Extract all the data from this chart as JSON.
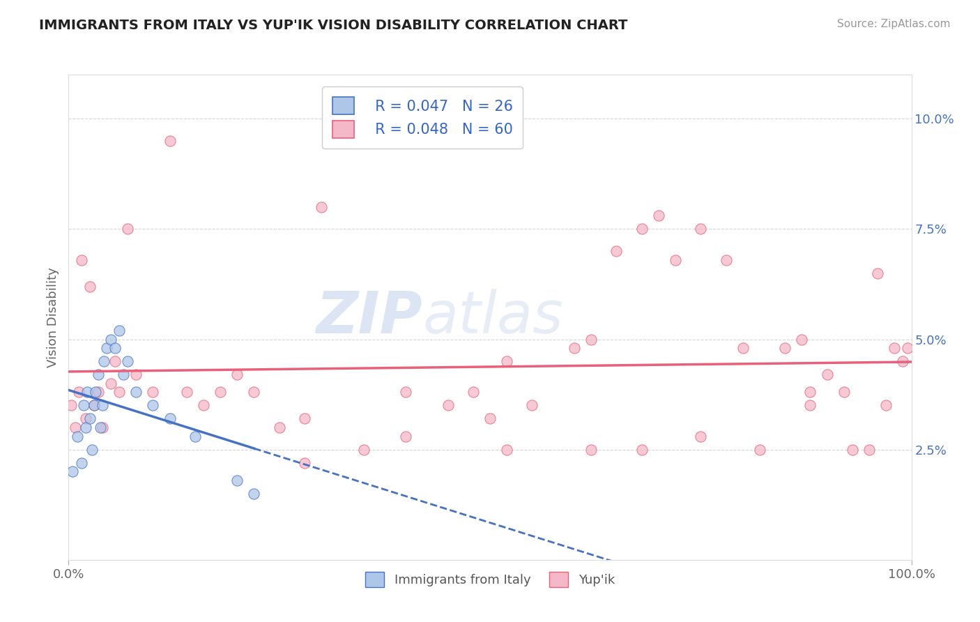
{
  "title": "IMMIGRANTS FROM ITALY VS YUP'IK VISION DISABILITY CORRELATION CHART",
  "source": "Source: ZipAtlas.com",
  "ylabel": "Vision Disability",
  "xlim": [
    0,
    100
  ],
  "ylim": [
    0,
    11
  ],
  "xticks": [
    0,
    100
  ],
  "xtick_labels": [
    "0.0%",
    "100.0%"
  ],
  "yticks": [
    2.5,
    5.0,
    7.5,
    10.0
  ],
  "ytick_labels": [
    "2.5%",
    "5.0%",
    "7.5%",
    "10.0%"
  ],
  "legend_italy_label": "Immigrants from Italy",
  "legend_yupik_label": "Yup'ik",
  "legend_italy_r": "R = 0.047",
  "legend_italy_n": "N = 26",
  "legend_yupik_r": "R = 0.048",
  "legend_yupik_n": "N = 60",
  "italy_color": "#AEC6E8",
  "yupik_color": "#F4B8C8",
  "italy_line_color": "#4472C4",
  "yupik_line_color": "#E8607A",
  "watermark_zip": "ZIP",
  "watermark_atlas": "atlas",
  "background_color": "#FFFFFF",
  "grid_color": "#CCCCCC",
  "italy_x": [
    0.5,
    1.0,
    1.5,
    1.8,
    2.0,
    2.2,
    2.5,
    2.8,
    3.0,
    3.2,
    3.5,
    3.8,
    4.0,
    4.2,
    4.5,
    5.0,
    5.5,
    6.0,
    6.5,
    7.0,
    8.0,
    10.0,
    12.0,
    15.0,
    20.0,
    22.0
  ],
  "italy_y": [
    2.0,
    2.8,
    2.2,
    3.5,
    3.0,
    3.8,
    3.2,
    2.5,
    3.5,
    3.8,
    4.2,
    3.0,
    3.5,
    4.5,
    4.8,
    5.0,
    4.8,
    5.2,
    4.2,
    4.5,
    3.8,
    3.5,
    3.2,
    2.8,
    1.8,
    1.5
  ],
  "yupik_x": [
    0.3,
    0.8,
    1.2,
    1.5,
    2.0,
    2.5,
    3.0,
    3.5,
    4.0,
    5.0,
    5.5,
    6.0,
    7.0,
    8.0,
    10.0,
    12.0,
    14.0,
    16.0,
    18.0,
    20.0,
    22.0,
    25.0,
    28.0,
    30.0,
    35.0,
    40.0,
    45.0,
    48.0,
    50.0,
    52.0,
    55.0,
    60.0,
    62.0,
    65.0,
    68.0,
    70.0,
    72.0,
    75.0,
    78.0,
    80.0,
    82.0,
    85.0,
    87.0,
    88.0,
    90.0,
    92.0,
    93.0,
    95.0,
    96.0,
    97.0,
    98.0,
    99.0,
    99.5,
    28.0,
    40.0,
    52.0,
    62.0,
    68.0,
    75.0,
    88.0
  ],
  "yupik_y": [
    3.5,
    3.0,
    3.8,
    6.8,
    3.2,
    6.2,
    3.5,
    3.8,
    3.0,
    4.0,
    4.5,
    3.8,
    7.5,
    4.2,
    3.8,
    9.5,
    3.8,
    3.5,
    3.8,
    4.2,
    3.8,
    3.0,
    3.2,
    8.0,
    2.5,
    3.8,
    3.5,
    3.8,
    3.2,
    4.5,
    3.5,
    4.8,
    5.0,
    7.0,
    7.5,
    7.8,
    6.8,
    7.5,
    6.8,
    4.8,
    2.5,
    4.8,
    5.0,
    3.5,
    4.2,
    3.8,
    2.5,
    2.5,
    6.5,
    3.5,
    4.8,
    4.5,
    4.8,
    2.2,
    2.8,
    2.5,
    2.5,
    2.5,
    2.8,
    3.8
  ]
}
